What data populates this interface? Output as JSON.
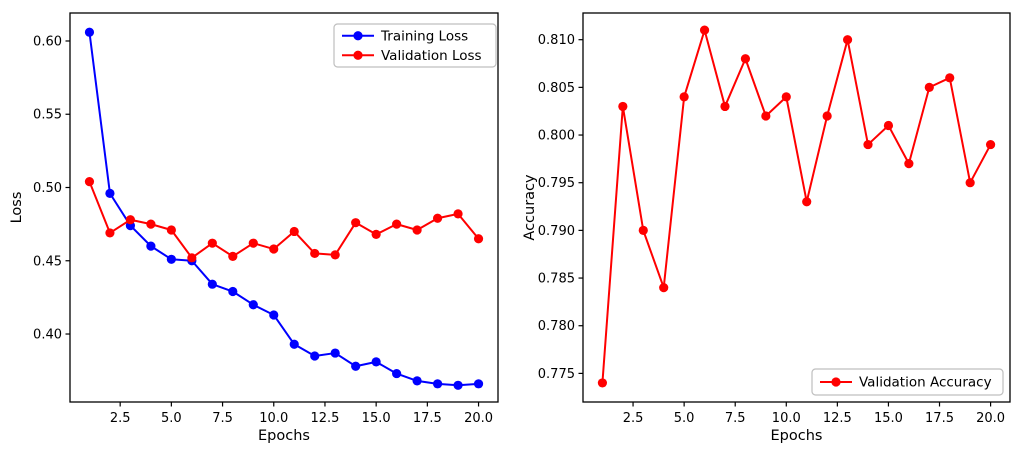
{
  "figure": {
    "background": "#ffffff"
  },
  "colors": {
    "training": "#0000ff",
    "validation": "#ff0000",
    "spine": "#000000",
    "legend_border": "#bfbfbf"
  },
  "chart_data": [
    {
      "type": "line",
      "title": "",
      "xlabel": "Epochs",
      "ylabel": "Loss",
      "x": [
        1,
        2,
        3,
        4,
        5,
        6,
        7,
        8,
        9,
        10,
        11,
        12,
        13,
        14,
        15,
        16,
        17,
        18,
        19,
        20
      ],
      "series": [
        {
          "name": "Training Loss",
          "color": "#0000ff",
          "marker": "circle",
          "values": [
            0.606,
            0.496,
            0.474,
            0.46,
            0.451,
            0.45,
            0.434,
            0.429,
            0.42,
            0.413,
            0.393,
            0.385,
            0.387,
            0.378,
            0.381,
            0.373,
            0.368,
            0.366,
            0.365,
            0.366
          ]
        },
        {
          "name": "Validation Loss",
          "color": "#ff0000",
          "marker": "circle",
          "values": [
            0.504,
            0.469,
            0.478,
            0.475,
            0.471,
            0.452,
            0.462,
            0.453,
            0.462,
            0.458,
            0.47,
            0.455,
            0.454,
            0.476,
            0.468,
            0.475,
            0.471,
            0.479,
            0.482,
            0.465
          ]
        }
      ],
      "xlim": [
        0.05,
        20.95
      ],
      "ylim": [
        0.3536,
        0.6191
      ],
      "xticks": [
        2.5,
        5.0,
        7.5,
        10.0,
        12.5,
        15.0,
        17.5,
        20.0
      ],
      "xtick_labels": [
        "2.5",
        "5.0",
        "7.5",
        "10.0",
        "12.5",
        "15.0",
        "17.5",
        "20.0"
      ],
      "yticks": [
        0.4,
        0.45,
        0.5,
        0.55,
        0.6
      ],
      "ytick_labels": [
        "0.40",
        "0.45",
        "0.50",
        "0.55",
        "0.60"
      ],
      "grid": false,
      "legend": {
        "position": "upper right",
        "labels": [
          "Training Loss",
          "Validation Loss"
        ]
      }
    },
    {
      "type": "line",
      "title": "",
      "xlabel": "Epochs",
      "ylabel": "Accuracy",
      "x": [
        1,
        2,
        3,
        4,
        5,
        6,
        7,
        8,
        9,
        10,
        11,
        12,
        13,
        14,
        15,
        16,
        17,
        18,
        19,
        20
      ],
      "series": [
        {
          "name": "Validation Accuracy",
          "color": "#ff0000",
          "marker": "circle",
          "values": [
            0.774,
            0.803,
            0.79,
            0.784,
            0.804,
            0.811,
            0.803,
            0.808,
            0.802,
            0.804,
            0.793,
            0.802,
            0.81,
            0.799,
            0.801,
            0.797,
            0.805,
            0.806,
            0.795,
            0.799
          ]
        }
      ],
      "xlim": [
        0.05,
        20.95
      ],
      "ylim": [
        0.772,
        0.8128
      ],
      "xticks": [
        2.5,
        5.0,
        7.5,
        10.0,
        12.5,
        15.0,
        17.5,
        20.0
      ],
      "xtick_labels": [
        "2.5",
        "5.0",
        "7.5",
        "10.0",
        "12.5",
        "15.0",
        "17.5",
        "20.0"
      ],
      "yticks": [
        0.775,
        0.78,
        0.785,
        0.79,
        0.795,
        0.8,
        0.805,
        0.81
      ],
      "ytick_labels": [
        "0.775",
        "0.780",
        "0.785",
        "0.790",
        "0.795",
        "0.800",
        "0.805",
        "0.810"
      ],
      "grid": false,
      "legend": {
        "position": "lower right",
        "labels": [
          "Validation Accuracy"
        ]
      }
    }
  ]
}
